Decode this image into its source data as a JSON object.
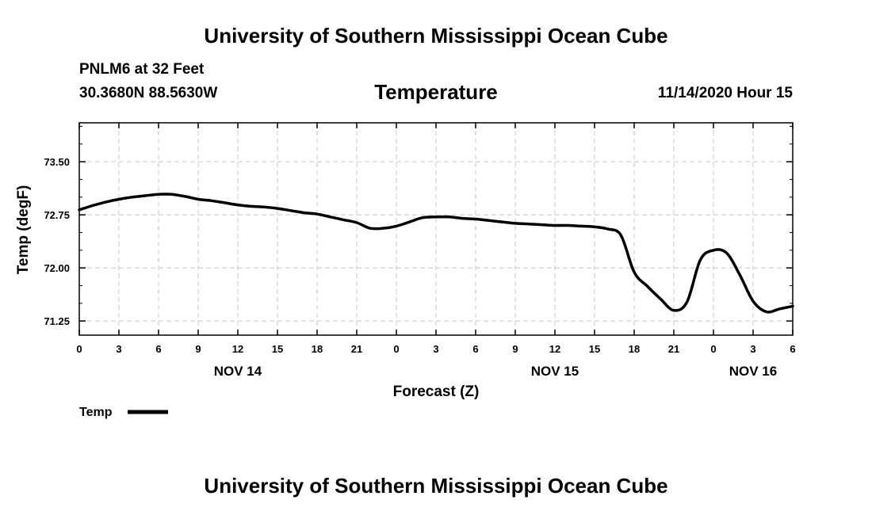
{
  "header": {
    "title": "University of Southern Mississippi Ocean Cube",
    "station": "PNLM6 at 32 Feet",
    "coords": "30.3680N 88.5630W",
    "variable": "Temperature",
    "datetime": "11/14/2020 Hour 15"
  },
  "footer": {
    "title": "University of Southern Mississippi Ocean Cube"
  },
  "chart_data": {
    "type": "line",
    "title": "Temperature",
    "xlabel": "Forecast (Z)",
    "ylabel": "Temp (degF)",
    "xlim": [
      0,
      54
    ],
    "ylim": [
      71.05,
      74.05
    ],
    "x_ticks": [
      0,
      3,
      6,
      9,
      12,
      15,
      18,
      21,
      24,
      27,
      30,
      33,
      36,
      39,
      42,
      45,
      48,
      51,
      54
    ],
    "x_tick_labels": [
      "0",
      "3",
      "6",
      "9",
      "12",
      "15",
      "18",
      "21",
      "0",
      "3",
      "6",
      "9",
      "12",
      "15",
      "18",
      "21",
      "0",
      "3",
      "6"
    ],
    "y_ticks": [
      71.25,
      72.0,
      72.75,
      73.5
    ],
    "y_tick_labels": [
      "71.25",
      "72.00",
      "72.75",
      "73.50"
    ],
    "day_labels": [
      {
        "x": 12,
        "label": "NOV 14"
      },
      {
        "x": 36,
        "label": "NOV 15"
      },
      {
        "x": 51,
        "label": "NOV 16"
      }
    ],
    "grid": true,
    "legend": {
      "position": "bottom-left",
      "entries": [
        "Temp"
      ]
    },
    "series": [
      {
        "name": "Temp",
        "color": "#000000",
        "x": [
          0,
          1,
          2,
          3,
          4,
          5,
          6,
          7,
          8,
          9,
          10,
          11,
          12,
          13,
          14,
          15,
          16,
          17,
          18,
          19,
          20,
          21,
          22,
          23,
          24,
          25,
          26,
          27,
          28,
          29,
          30,
          31,
          32,
          33,
          34,
          35,
          36,
          37,
          38,
          39,
          40,
          41,
          42,
          43,
          44,
          45,
          46,
          47,
          48,
          49,
          50,
          51,
          52,
          53,
          54
        ],
        "values": [
          72.82,
          72.88,
          72.93,
          72.97,
          73.0,
          73.02,
          73.04,
          73.04,
          73.01,
          72.97,
          72.95,
          72.92,
          72.89,
          72.87,
          72.86,
          72.84,
          72.81,
          72.78,
          72.76,
          72.72,
          72.68,
          72.64,
          72.56,
          72.56,
          72.59,
          72.65,
          72.71,
          72.72,
          72.72,
          72.7,
          72.69,
          72.67,
          72.65,
          72.63,
          72.62,
          72.61,
          72.6,
          72.6,
          72.59,
          72.58,
          72.55,
          72.46,
          71.94,
          71.74,
          71.56,
          71.4,
          71.52,
          72.11,
          72.25,
          72.21,
          71.9,
          71.53,
          71.38,
          71.42,
          71.46
        ]
      }
    ]
  }
}
